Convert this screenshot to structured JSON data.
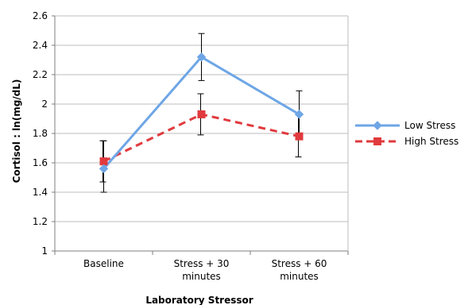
{
  "chart_data": {
    "type": "line",
    "categories": [
      "Baseline",
      "Stress + 30 minutes",
      "Stress + 60 minutes"
    ],
    "category_lines": [
      [
        "Baseline"
      ],
      [
        "Stress + 30",
        "minutes"
      ],
      [
        "Stress + 60",
        "minutes"
      ]
    ],
    "xlabel": "Laboratory Stressor",
    "ylabel": "Cortisol : ln(mg/dL)",
    "ylim": [
      1,
      2.6
    ],
    "yticks": [
      "1",
      "1.2",
      "1.4",
      "1.6",
      "1.8",
      "2",
      "2.2",
      "2.4",
      "2.6"
    ],
    "grid": true,
    "legend_position": "right",
    "series": [
      {
        "name": "Low Stress",
        "values": [
          1.56,
          2.32,
          1.93
        ],
        "error_low": [
          1.4,
          2.16,
          1.76
        ],
        "error_high": [
          1.75,
          2.48,
          2.09
        ],
        "color": "#6ea6e6",
        "marker": "diamond",
        "line_style": "solid"
      },
      {
        "name": "High Stress",
        "values": [
          1.61,
          1.93,
          1.78
        ],
        "error_low": [
          1.47,
          1.79,
          1.64
        ],
        "error_high": [
          1.75,
          2.07,
          1.93
        ],
        "color": "#e03a3e",
        "marker": "square",
        "line_style": "dashed"
      }
    ]
  }
}
